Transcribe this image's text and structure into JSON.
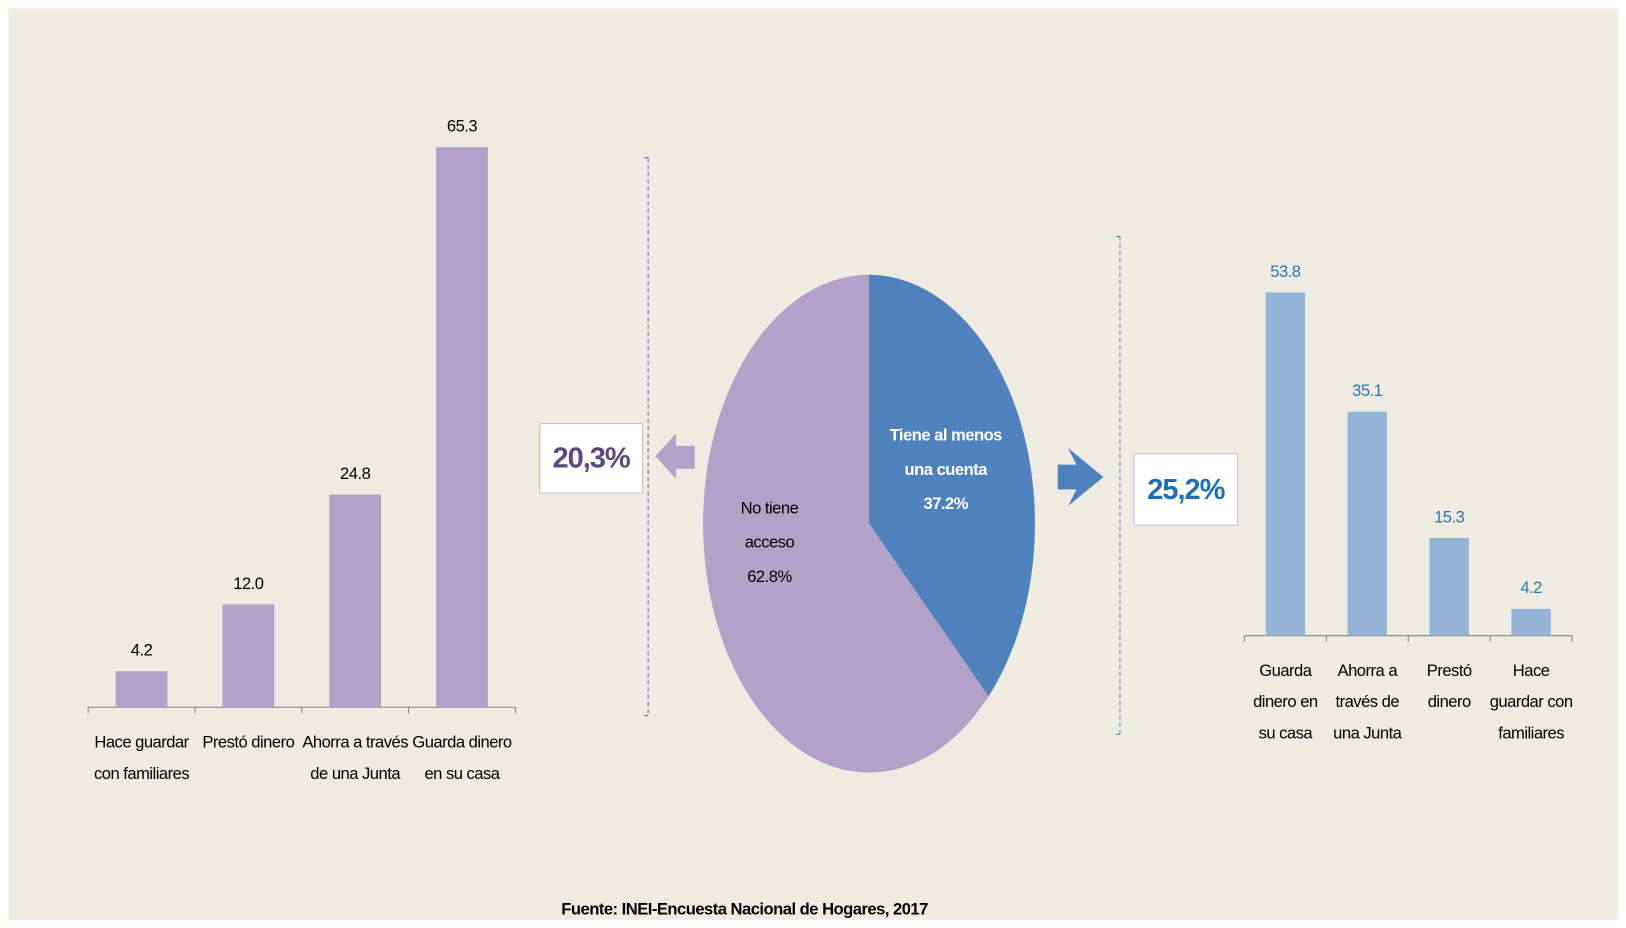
{
  "chart_data": [
    {
      "type": "bar",
      "categories": [
        "Hace guardar con familiares",
        "Prestó dinero",
        "Ahorra a través de una Junta",
        "Guarda dinero en su casa"
      ],
      "values": [
        4.2,
        12.0,
        24.8,
        65.3
      ],
      "value_labels": [
        "4.2",
        "12.0",
        "24.8",
        "65.3"
      ],
      "color": "#b3a2c8",
      "label_color": "#000000"
    },
    {
      "type": "pie",
      "categories": [
        "No tiene acceso",
        "Tiene al menos una cuenta"
      ],
      "values": [
        62.8,
        37.2
      ],
      "value_labels": [
        "62.8%",
        "37.2%"
      ],
      "colors": [
        "#b3a2c8",
        "#4f81bd"
      ],
      "annotations": [
        "20,3%",
        "25,2%"
      ]
    },
    {
      "type": "bar",
      "categories": [
        "Guarda dinero en su casa",
        "Ahorra a través de una Junta",
        "Prestó dinero",
        "Hace guardar con familiares"
      ],
      "values": [
        53.8,
        35.1,
        15.3,
        4.2
      ],
      "value_labels": [
        "53.8",
        "35.1",
        "15.3",
        "4.2"
      ],
      "color": "#95b3d7",
      "label_color": "#2e75b6"
    }
  ],
  "source": "Fuente: INEI-Encuesta Nacional de Hogares, 2017"
}
